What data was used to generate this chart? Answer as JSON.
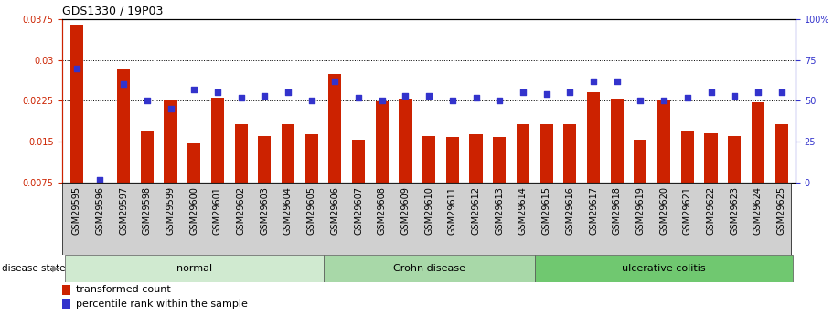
{
  "title": "GDS1330 / 19P03",
  "samples": [
    "GSM29595",
    "GSM29596",
    "GSM29597",
    "GSM29598",
    "GSM29599",
    "GSM29600",
    "GSM29601",
    "GSM29602",
    "GSM29603",
    "GSM29604",
    "GSM29605",
    "GSM29606",
    "GSM29607",
    "GSM29608",
    "GSM29609",
    "GSM29610",
    "GSM29611",
    "GSM29612",
    "GSM29613",
    "GSM29614",
    "GSM29615",
    "GSM29616",
    "GSM29617",
    "GSM29618",
    "GSM29619",
    "GSM29620",
    "GSM29621",
    "GSM29622",
    "GSM29623",
    "GSM29624",
    "GSM29625"
  ],
  "transformed_count": [
    0.0365,
    0.0075,
    0.0282,
    0.017,
    0.0225,
    0.0147,
    0.0231,
    0.0183,
    0.016,
    0.0183,
    0.0163,
    0.0275,
    0.0154,
    0.0224,
    0.0229,
    0.0161,
    0.0158,
    0.0163,
    0.0158,
    0.0183,
    0.0183,
    0.0183,
    0.024,
    0.0229,
    0.0154,
    0.0225,
    0.017,
    0.0165,
    0.016,
    0.0222,
    0.0183
  ],
  "percentile_rank": [
    70,
    2,
    60,
    50,
    45,
    57,
    55,
    52,
    53,
    55,
    50,
    62,
    52,
    50,
    53,
    53,
    50,
    52,
    50,
    55,
    54,
    55,
    62,
    62,
    50,
    50,
    52,
    55,
    53,
    55,
    55
  ],
  "ylim_left": [
    0.0075,
    0.0375
  ],
  "ylim_right": [
    0,
    100
  ],
  "yticks_left": [
    0.0075,
    0.015,
    0.0225,
    0.03,
    0.0375
  ],
  "yticks_right": [
    0,
    25,
    50,
    75,
    100
  ],
  "ytick_right_labels": [
    "0",
    "25",
    "50",
    "75",
    "100%"
  ],
  "bar_color": "#cc2200",
  "dot_color": "#3333cc",
  "grid_color": "#000000",
  "grid_levels": [
    0.015,
    0.0225,
    0.03
  ],
  "legend_items": [
    "transformed count",
    "percentile rank within the sample"
  ],
  "title_fontsize": 9,
  "tick_fontsize": 7,
  "group_label_fontsize": 8,
  "disease_state_fontsize": 7.5,
  "groups": [
    {
      "label": "normal",
      "start": 0,
      "end": 10,
      "facecolor": "#d0ead0"
    },
    {
      "label": "Crohn disease",
      "start": 11,
      "end": 19,
      "facecolor": "#a8d8a8"
    },
    {
      "label": "ulcerative colitis",
      "start": 20,
      "end": 30,
      "facecolor": "#70c870"
    }
  ]
}
